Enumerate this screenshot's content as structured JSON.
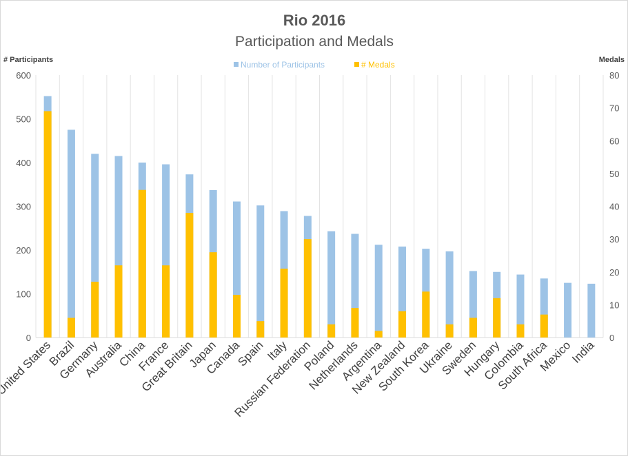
{
  "chart_data": {
    "type": "bar",
    "title": "Rio 2016",
    "subtitle": "Participation and Medals",
    "ylabel_left": "# Participants",
    "ylabel_right": "Medals",
    "ylim_left": [
      0,
      600
    ],
    "ylim_right": [
      0,
      80
    ],
    "yticks_left": [
      0,
      100,
      200,
      300,
      400,
      500,
      600
    ],
    "yticks_right": [
      0,
      10,
      20,
      30,
      40,
      50,
      60,
      70,
      80
    ],
    "grid": "vertical",
    "legend_position": "top-center",
    "categories": [
      "United States",
      "Brazil",
      "Germany",
      "Australia",
      "China",
      "France",
      "Great Britain",
      "Japan",
      "Canada",
      "Spain",
      "Italy",
      "Russian Federation",
      "Poland",
      "Netherlands",
      "Argentina",
      "New Zealand",
      "South Korea",
      "Ukraine",
      "Sweden",
      "Hungary",
      "Colombia",
      "South Africa",
      "Mexico",
      "India"
    ],
    "series": [
      {
        "name": "Number of Participants",
        "axis": "left",
        "color": "#9dc3e6",
        "values": [
          552,
          475,
          420,
          415,
          400,
          396,
          373,
          337,
          311,
          302,
          289,
          278,
          243,
          237,
          212,
          208,
          203,
          197,
          152,
          150,
          144,
          135,
          125,
          123
        ]
      },
      {
        "name": "# Medals",
        "axis": "right",
        "color": "#ffc000",
        "values": [
          69,
          6,
          17,
          22,
          45,
          22,
          38,
          26,
          13,
          5,
          21,
          30,
          4,
          9,
          2,
          8,
          14,
          4,
          6,
          12,
          4,
          7,
          0,
          0
        ]
      }
    ]
  }
}
